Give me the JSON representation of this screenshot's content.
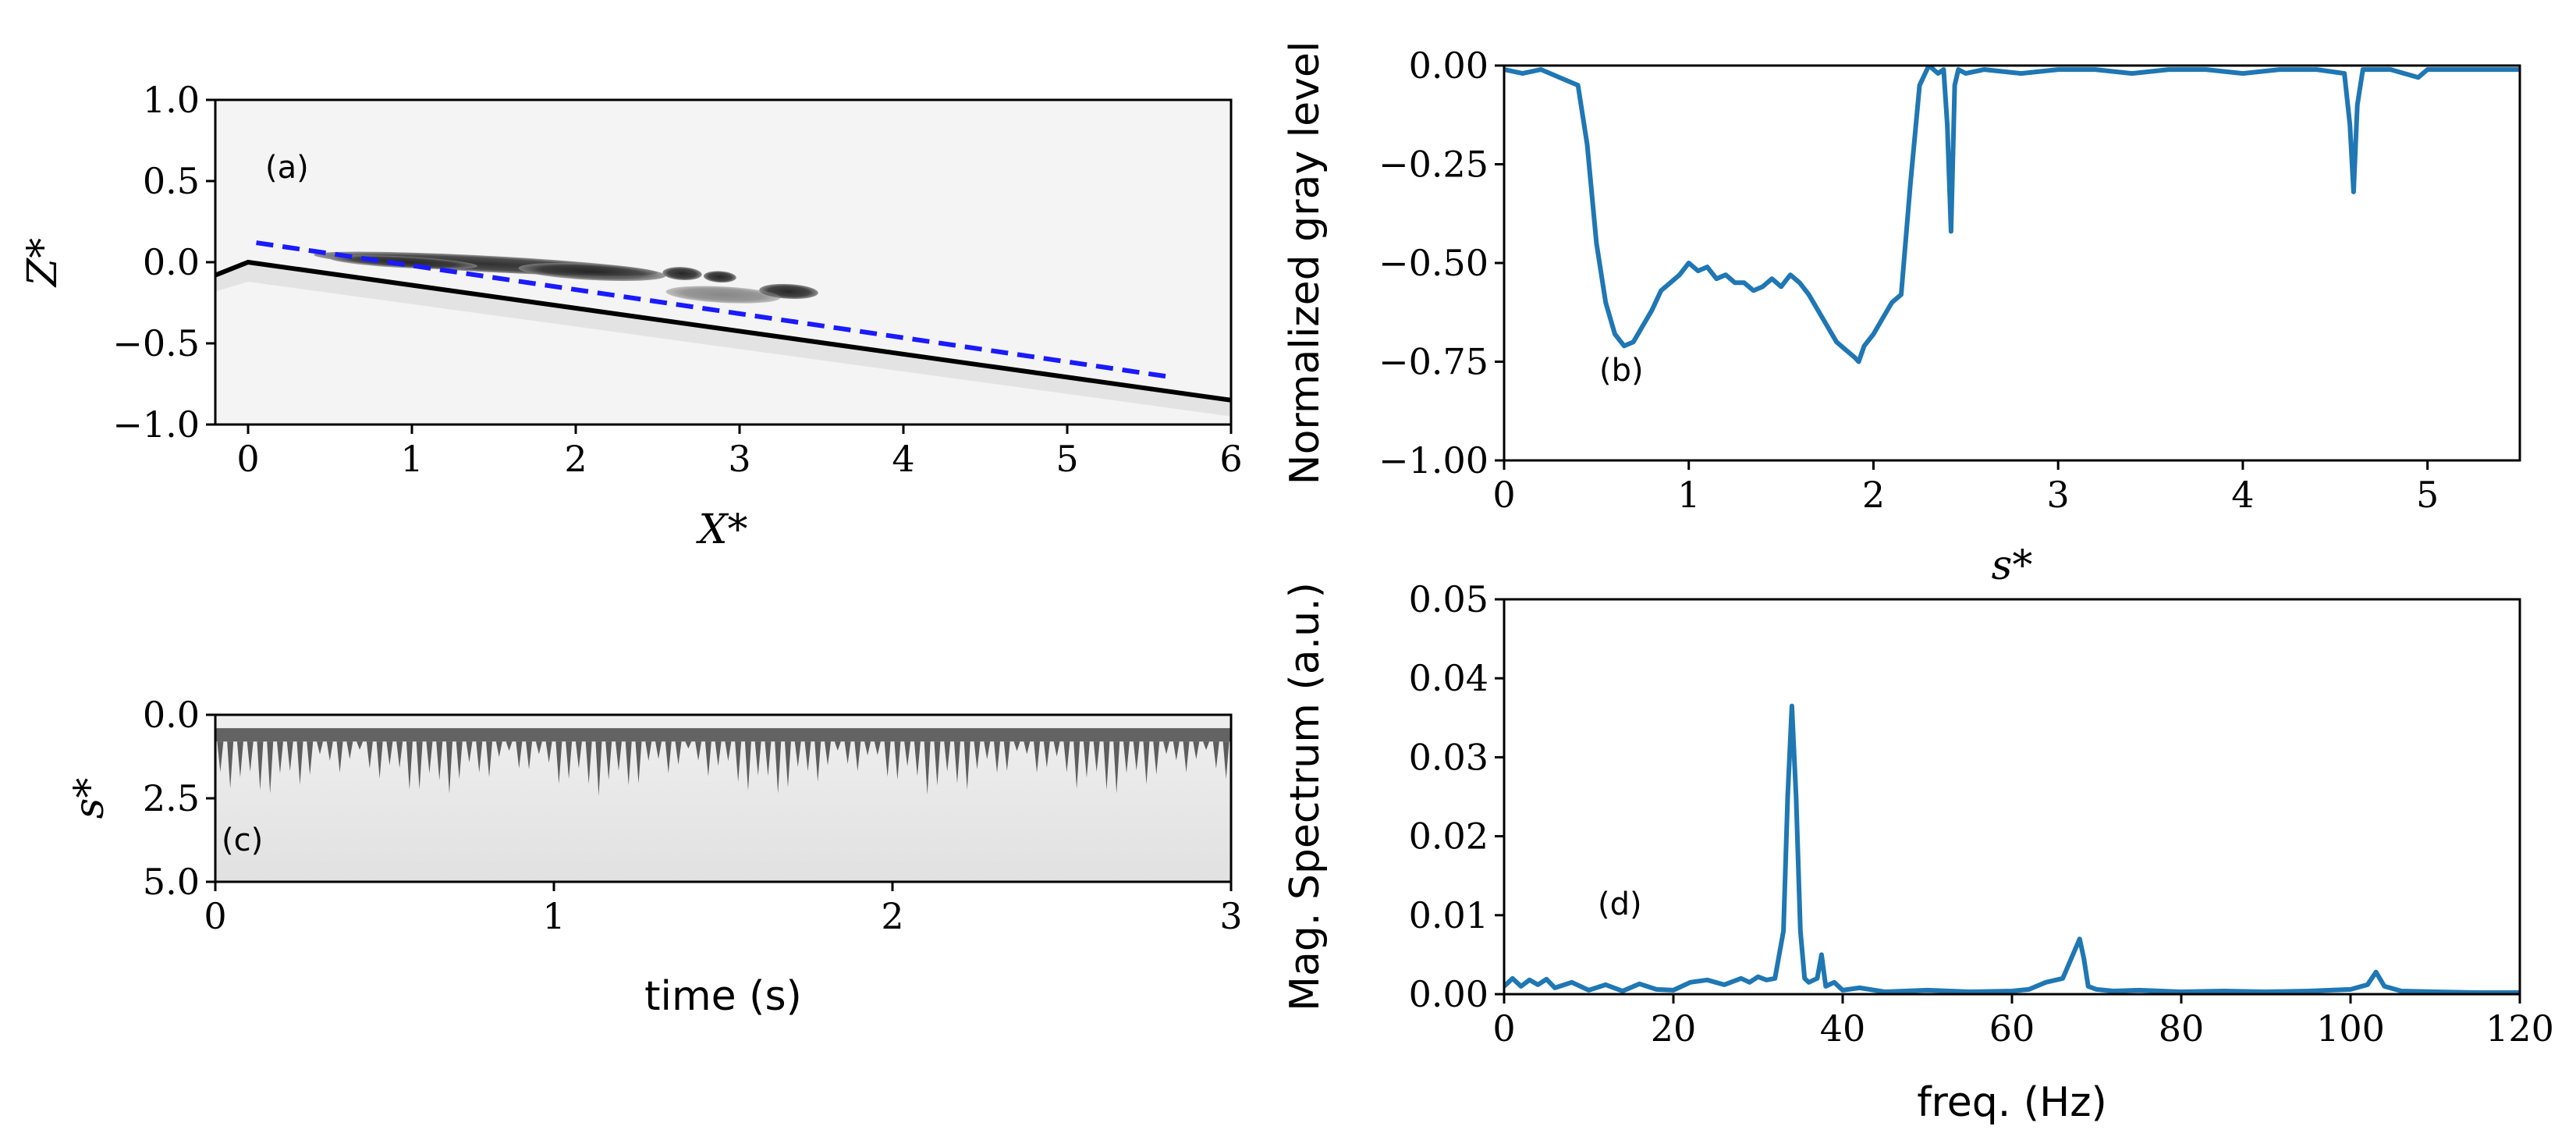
{
  "chart_data": [
    {
      "panel": "a",
      "type": "image",
      "annotation": "(a)",
      "xlabel": "X*",
      "ylabel": "Z*",
      "xlim": [
        -0.2,
        6
      ],
      "ylim": [
        -1.0,
        1.0
      ],
      "xticks": [
        "0",
        "1",
        "2",
        "3",
        "4",
        "5",
        "6"
      ],
      "yticks": [
        "1.0",
        "0.5",
        "0.0",
        "−0.5",
        "−1.0"
      ],
      "lines": [
        {
          "style": "solid",
          "color": "#000000",
          "x": [
            -0.2,
            0,
            6
          ],
          "y": [
            -0.08,
            0.0,
            -0.85
          ]
        },
        {
          "style": "dashed",
          "color": "#1a1aff",
          "x": [
            0.05,
            5.65
          ],
          "y": [
            0.12,
            -0.71
          ]
        }
      ]
    },
    {
      "panel": "b",
      "type": "line",
      "annotation": "(b)",
      "xlabel": "s*",
      "ylabel": "Normalized gray level",
      "xlim": [
        0,
        5.5
      ],
      "ylim": [
        -1.0,
        0.0
      ],
      "xticks": [
        "0",
        "1",
        "2",
        "3",
        "4",
        "5"
      ],
      "yticks": [
        "0.00",
        "−0.25",
        "−0.50",
        "−0.75",
        "−1.00"
      ],
      "series": [
        {
          "color": "#1f77b4",
          "x": [
            0,
            0.1,
            0.2,
            0.3,
            0.4,
            0.45,
            0.5,
            0.55,
            0.6,
            0.65,
            0.7,
            0.75,
            0.8,
            0.85,
            0.9,
            0.95,
            1.0,
            1.05,
            1.1,
            1.15,
            1.2,
            1.25,
            1.3,
            1.35,
            1.4,
            1.45,
            1.5,
            1.55,
            1.6,
            1.65,
            1.7,
            1.75,
            1.8,
            1.85,
            1.9,
            1.92,
            1.95,
            2.0,
            2.05,
            2.1,
            2.15,
            2.2,
            2.25,
            2.3,
            2.35,
            2.38,
            2.4,
            2.42,
            2.44,
            2.46,
            2.5,
            2.6,
            2.8,
            3.0,
            3.2,
            3.4,
            3.6,
            3.8,
            4.0,
            4.2,
            4.4,
            4.55,
            4.58,
            4.6,
            4.62,
            4.65,
            4.8,
            4.95,
            5.0,
            5.2,
            5.5
          ],
          "y": [
            -0.01,
            -0.02,
            -0.01,
            -0.03,
            -0.05,
            -0.2,
            -0.45,
            -0.6,
            -0.68,
            -0.71,
            -0.7,
            -0.66,
            -0.62,
            -0.57,
            -0.55,
            -0.53,
            -0.5,
            -0.52,
            -0.51,
            -0.54,
            -0.53,
            -0.55,
            -0.55,
            -0.57,
            -0.56,
            -0.54,
            -0.56,
            -0.53,
            -0.55,
            -0.58,
            -0.62,
            -0.66,
            -0.7,
            -0.72,
            -0.74,
            -0.75,
            -0.71,
            -0.68,
            -0.64,
            -0.6,
            -0.58,
            -0.3,
            -0.05,
            0.0,
            -0.02,
            -0.01,
            -0.15,
            -0.42,
            -0.05,
            -0.01,
            -0.02,
            -0.01,
            -0.02,
            -0.01,
            -0.01,
            -0.02,
            -0.01,
            -0.01,
            -0.02,
            -0.01,
            -0.01,
            -0.02,
            -0.15,
            -0.32,
            -0.1,
            -0.01,
            -0.01,
            -0.03,
            -0.01,
            -0.01,
            -0.01
          ]
        }
      ]
    },
    {
      "panel": "c",
      "type": "heatmap",
      "annotation": "(c)",
      "xlabel": "time (s)",
      "ylabel": "s*",
      "xlim": [
        0,
        3
      ],
      "ylim": [
        5.0,
        0.0
      ],
      "xticks": [
        "0",
        "1",
        "2",
        "3"
      ],
      "yticks": [
        "0.0",
        "2.5",
        "5.0"
      ],
      "dark_band_s": [
        0.4,
        0.8
      ],
      "streak_count": 102,
      "streak_length_s": [
        1.0,
        2.6
      ]
    },
    {
      "panel": "d",
      "type": "line",
      "annotation": "(d)",
      "xlabel": "freq. (Hz)",
      "ylabel": "Mag. Spectrum (a.u.)",
      "xlim": [
        0,
        120
      ],
      "ylim": [
        0,
        0.05
      ],
      "xticks": [
        "0",
        "20",
        "40",
        "60",
        "80",
        "100",
        "120"
      ],
      "yticks": [
        "0.05",
        "0.04",
        "0.03",
        "0.02",
        "0.01",
        "0.00"
      ],
      "series": [
        {
          "color": "#1f77b4",
          "x": [
            0,
            1,
            2,
            3,
            4,
            5,
            6,
            8,
            10,
            12,
            14,
            16,
            18,
            20,
            22,
            24,
            26,
            28,
            29,
            30,
            31,
            32,
            33,
            33.5,
            34,
            34.5,
            35,
            35.5,
            36,
            37,
            37.5,
            38,
            39,
            40,
            42,
            45,
            50,
            55,
            60,
            62,
            64,
            66,
            67,
            68,
            68.5,
            69,
            70,
            72,
            75,
            80,
            85,
            90,
            95,
            100,
            102,
            103,
            104,
            106,
            110,
            115,
            120
          ],
          "y": [
            0.001,
            0.002,
            0.001,
            0.0018,
            0.0012,
            0.0019,
            0.0008,
            0.0015,
            0.0005,
            0.0012,
            0.0004,
            0.0013,
            0.0006,
            0.0005,
            0.0015,
            0.0018,
            0.0012,
            0.002,
            0.0015,
            0.0022,
            0.0018,
            0.002,
            0.008,
            0.025,
            0.0365,
            0.025,
            0.008,
            0.002,
            0.0015,
            0.002,
            0.005,
            0.001,
            0.0015,
            0.0005,
            0.0008,
            0.0003,
            0.0005,
            0.0003,
            0.0004,
            0.0006,
            0.0015,
            0.002,
            0.0045,
            0.007,
            0.0045,
            0.001,
            0.0006,
            0.0004,
            0.0005,
            0.0003,
            0.0004,
            0.0003,
            0.0004,
            0.0006,
            0.0012,
            0.0028,
            0.001,
            0.0004,
            0.0003,
            0.0002,
            0.0002
          ]
        }
      ]
    }
  ]
}
